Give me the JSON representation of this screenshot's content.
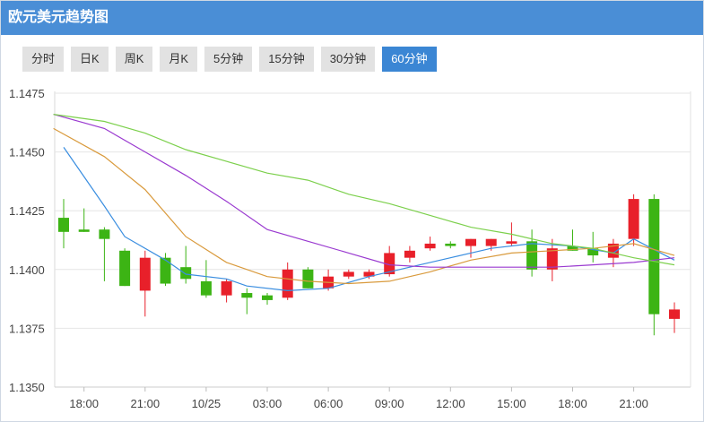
{
  "header": {
    "title": "欧元美元趋势图"
  },
  "tabs": [
    {
      "label": "分时",
      "active": false
    },
    {
      "label": "日K",
      "active": false
    },
    {
      "label": "周K",
      "active": false
    },
    {
      "label": "月K",
      "active": false
    },
    {
      "label": "5分钟",
      "active": false
    },
    {
      "label": "15分钟",
      "active": false
    },
    {
      "label": "30分钟",
      "active": false
    },
    {
      "label": "60分钟",
      "active": true
    }
  ],
  "colors": {
    "up": "#e8202a",
    "down": "#3cb414",
    "ma_blue": "#3a8ee0",
    "ma_orange": "#d99a3c",
    "ma_purple": "#9a3ad0",
    "ma_green": "#7cd04c",
    "header": "#4a8ed6",
    "active_tab": "#3b86d4"
  },
  "chart_data": {
    "type": "candlestick",
    "title": "",
    "xlabel": "",
    "ylabel": "",
    "ylim": [
      1.135,
      1.1475
    ],
    "y_ticks": [
      "1.1475",
      "1.1450",
      "1.1425",
      "1.1400",
      "1.1375",
      "1.1350"
    ],
    "x_ticks": [
      "18:00",
      "21:00",
      "10/25",
      "03:00",
      "06:00",
      "09:00",
      "12:00",
      "15:00",
      "18:00",
      "21:00"
    ],
    "grid": true,
    "candles": [
      {
        "time": "17:00",
        "open": 1.1422,
        "high": 1.143,
        "low": 1.1409,
        "close": 1.1416
      },
      {
        "time": "18:00",
        "open": 1.1417,
        "high": 1.1426,
        "low": 1.1416,
        "close": 1.1416
      },
      {
        "time": "19:00",
        "open": 1.1417,
        "high": 1.1418,
        "low": 1.1395,
        "close": 1.1413
      },
      {
        "time": "20:00",
        "open": 1.1408,
        "high": 1.1409,
        "low": 1.1393,
        "close": 1.1393
      },
      {
        "time": "21:00",
        "open": 1.1391,
        "high": 1.1408,
        "low": 1.138,
        "close": 1.1405
      },
      {
        "time": "22:00",
        "open": 1.1405,
        "high": 1.1407,
        "low": 1.1393,
        "close": 1.1394
      },
      {
        "time": "23:00",
        "open": 1.1401,
        "high": 1.141,
        "low": 1.1394,
        "close": 1.1396
      },
      {
        "time": "00:00",
        "open": 1.1395,
        "high": 1.1404,
        "low": 1.1388,
        "close": 1.1389
      },
      {
        "time": "01:00",
        "open": 1.1389,
        "high": 1.1396,
        "low": 1.1386,
        "close": 1.1395
      },
      {
        "time": "02:00",
        "open": 1.139,
        "high": 1.1392,
        "low": 1.1381,
        "close": 1.1388
      },
      {
        "time": "03:00",
        "open": 1.1389,
        "high": 1.139,
        "low": 1.1385,
        "close": 1.1387
      },
      {
        "time": "04:00",
        "open": 1.1388,
        "high": 1.1403,
        "low": 1.1387,
        "close": 1.14
      },
      {
        "time": "05:00",
        "open": 1.14,
        "high": 1.1401,
        "low": 1.1392,
        "close": 1.1392
      },
      {
        "time": "06:00",
        "open": 1.1392,
        "high": 1.14,
        "low": 1.1391,
        "close": 1.1397
      },
      {
        "time": "07:00",
        "open": 1.1397,
        "high": 1.14,
        "low": 1.1396,
        "close": 1.1399
      },
      {
        "time": "08:00",
        "open": 1.1397,
        "high": 1.14,
        "low": 1.1396,
        "close": 1.1399
      },
      {
        "time": "09:00",
        "open": 1.1398,
        "high": 1.141,
        "low": 1.1397,
        "close": 1.1407
      },
      {
        "time": "10:00",
        "open": 1.1405,
        "high": 1.141,
        "low": 1.1403,
        "close": 1.1408
      },
      {
        "time": "11:00",
        "open": 1.1409,
        "high": 1.1414,
        "low": 1.1408,
        "close": 1.1411
      },
      {
        "time": "12:00",
        "open": 1.1411,
        "high": 1.1412,
        "low": 1.1409,
        "close": 1.141
      },
      {
        "time": "13:00",
        "open": 1.141,
        "high": 1.1413,
        "low": 1.1405,
        "close": 1.1413
      },
      {
        "time": "14:00",
        "open": 1.141,
        "high": 1.1413,
        "low": 1.1408,
        "close": 1.1413
      },
      {
        "time": "15:00",
        "open": 1.1411,
        "high": 1.142,
        "low": 1.141,
        "close": 1.1412
      },
      {
        "time": "16:00",
        "open": 1.1412,
        "high": 1.1417,
        "low": 1.1397,
        "close": 1.14
      },
      {
        "time": "17:00",
        "open": 1.14,
        "high": 1.1413,
        "low": 1.1395,
        "close": 1.1409
      },
      {
        "time": "18:00",
        "open": 1.141,
        "high": 1.1417,
        "low": 1.1408,
        "close": 1.1408
      },
      {
        "time": "19:00",
        "open": 1.1409,
        "high": 1.1416,
        "low": 1.1403,
        "close": 1.1406
      },
      {
        "time": "20:00",
        "open": 1.1405,
        "high": 1.1413,
        "low": 1.1401,
        "close": 1.1411
      },
      {
        "time": "21:00",
        "open": 1.1413,
        "high": 1.1432,
        "low": 1.141,
        "close": 1.143
      },
      {
        "time": "22:00",
        "open": 1.143,
        "high": 1.1432,
        "low": 1.1372,
        "close": 1.1381
      },
      {
        "time": "23:00",
        "open": 1.1379,
        "high": 1.1386,
        "low": 1.1373,
        "close": 1.1383
      }
    ],
    "series": [
      {
        "color": "ma_blue",
        "points": [
          [
            0,
            1.1452
          ],
          [
            2,
            1.1427
          ],
          [
            3,
            1.1414
          ],
          [
            5,
            1.1404
          ],
          [
            6,
            1.1398
          ],
          [
            8,
            1.1396
          ],
          [
            9,
            1.1393
          ],
          [
            11,
            1.1391
          ],
          [
            13,
            1.1392
          ],
          [
            15,
            1.1397
          ],
          [
            17,
            1.1401
          ],
          [
            19,
            1.1405
          ],
          [
            21,
            1.1409
          ],
          [
            23,
            1.1411
          ],
          [
            25,
            1.141
          ],
          [
            27,
            1.1407
          ],
          [
            28,
            1.1413
          ],
          [
            30,
            1.1404
          ]
        ]
      },
      {
        "color": "ma_orange",
        "points": [
          [
            -0.5,
            1.146
          ],
          [
            2,
            1.1448
          ],
          [
            4,
            1.1434
          ],
          [
            6,
            1.1414
          ],
          [
            8,
            1.1403
          ],
          [
            10,
            1.1397
          ],
          [
            12,
            1.1395
          ],
          [
            14,
            1.1394
          ],
          [
            16,
            1.1395
          ],
          [
            18,
            1.1399
          ],
          [
            20,
            1.1404
          ],
          [
            22,
            1.1407
          ],
          [
            24,
            1.1408
          ],
          [
            26,
            1.1409
          ],
          [
            28,
            1.1411
          ],
          [
            30,
            1.1406
          ]
        ]
      },
      {
        "color": "ma_purple",
        "points": [
          [
            -0.5,
            1.1466
          ],
          [
            2,
            1.146
          ],
          [
            4,
            1.145
          ],
          [
            6,
            1.144
          ],
          [
            8,
            1.1429
          ],
          [
            10,
            1.1417
          ],
          [
            12,
            1.1412
          ],
          [
            14,
            1.1407
          ],
          [
            16,
            1.1402
          ],
          [
            18,
            1.1401
          ],
          [
            20,
            1.1401
          ],
          [
            22,
            1.1401
          ],
          [
            24,
            1.1401
          ],
          [
            26,
            1.1402
          ],
          [
            28,
            1.1403
          ],
          [
            30,
            1.1405
          ]
        ]
      },
      {
        "color": "ma_green",
        "points": [
          [
            -0.5,
            1.1466
          ],
          [
            2,
            1.1463
          ],
          [
            4,
            1.1458
          ],
          [
            6,
            1.1451
          ],
          [
            8,
            1.1446
          ],
          [
            10,
            1.1441
          ],
          [
            12,
            1.1438
          ],
          [
            14,
            1.1432
          ],
          [
            16,
            1.1428
          ],
          [
            18,
            1.1423
          ],
          [
            20,
            1.1418
          ],
          [
            22,
            1.1415
          ],
          [
            24,
            1.1411
          ],
          [
            26,
            1.1409
          ],
          [
            28,
            1.1405
          ],
          [
            30,
            1.1402
          ]
        ]
      }
    ]
  }
}
